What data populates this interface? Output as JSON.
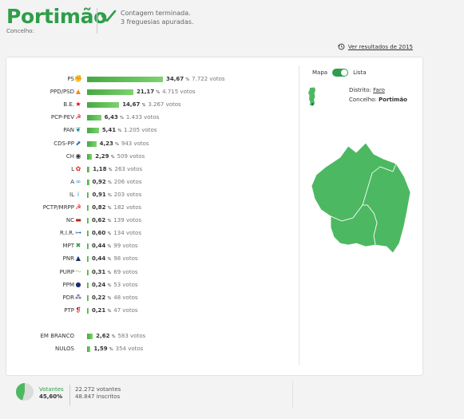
{
  "header": {
    "title": "Portimão",
    "subtitle": "Concelho:",
    "status_line1": "Contagem terminada.",
    "status_line2": "3 freguesias apuradas.",
    "prev_results_link": "Ver resultados de 2015"
  },
  "toggle": {
    "left_label": "Mapa",
    "right_label": "Lista",
    "active": "Mapa"
  },
  "location": {
    "district_label": "Distrito:",
    "district_value": "Faro",
    "council_label": "Concelho:",
    "council_value": "Portimão"
  },
  "parties": [
    {
      "abbr": "PS",
      "pct": "34,67",
      "votes": "7.722 votos",
      "value": 34.67,
      "logo_color": "#e2231a",
      "logo_glyph": "✊"
    },
    {
      "abbr": "PPD/PSD",
      "pct": "21,17",
      "votes": "4.715 votos",
      "value": 21.17,
      "logo_color": "#f68a1e",
      "logo_glyph": "▲"
    },
    {
      "abbr": "B.E.",
      "pct": "14,67",
      "votes": "3.267 votos",
      "value": 14.67,
      "logo_color": "#d7000f",
      "logo_glyph": "★"
    },
    {
      "abbr": "PCP-PEV",
      "pct": "6,43",
      "votes": "1.433 votos",
      "value": 6.43,
      "logo_color": "#d7000f",
      "logo_glyph": "☭"
    },
    {
      "abbr": "PAN",
      "pct": "5,41",
      "votes": "1.205 votos",
      "value": 5.41,
      "logo_color": "#0e8a8a",
      "logo_glyph": "❦"
    },
    {
      "abbr": "CDS-PP",
      "pct": "4,23",
      "votes": "943 votos",
      "value": 4.23,
      "logo_color": "#1f6ab4",
      "logo_glyph": "⬈"
    },
    {
      "abbr": "CH",
      "pct": "2,29",
      "votes": "509 votos",
      "value": 2.29,
      "logo_color": "#333333",
      "logo_glyph": "◉"
    },
    {
      "abbr": "L",
      "pct": "1,18",
      "votes": "263 votos",
      "value": 1.18,
      "logo_color": "#e2231a",
      "logo_glyph": "✿"
    },
    {
      "abbr": "A",
      "pct": "0,92",
      "votes": "206 votos",
      "value": 0.92,
      "logo_color": "#2a8fd6",
      "logo_glyph": "∞"
    },
    {
      "abbr": "IL",
      "pct": "0,91",
      "votes": "203 votos",
      "value": 0.91,
      "logo_color": "#1a9ae0",
      "logo_glyph": "i"
    },
    {
      "abbr": "PCTP/MRPP",
      "pct": "0,82",
      "votes": "182 votos",
      "value": 0.82,
      "logo_color": "#d7000f",
      "logo_glyph": "☭"
    },
    {
      "abbr": "NC",
      "pct": "0,62",
      "votes": "139 votos",
      "value": 0.62,
      "logo_color": "#b5251b",
      "logo_glyph": "▬"
    },
    {
      "abbr": "R.I.R.",
      "pct": "0,60",
      "votes": "134 votos",
      "value": 0.6,
      "logo_color": "#1f6ab4",
      "logo_glyph": "⊶"
    },
    {
      "abbr": "MPT",
      "pct": "0,44",
      "votes": "99 votos",
      "value": 0.44,
      "logo_color": "#2e9e4a",
      "logo_glyph": "✖"
    },
    {
      "abbr": "PNR",
      "pct": "0,44",
      "votes": "98 votos",
      "value": 0.44,
      "logo_color": "#1b2f6b",
      "logo_glyph": "▲"
    },
    {
      "abbr": "PURP",
      "pct": "0,31",
      "votes": "69 votos",
      "value": 0.31,
      "logo_color": "#8bc53f",
      "logo_glyph": "～"
    },
    {
      "abbr": "PPM",
      "pct": "0,24",
      "votes": "53 votos",
      "value": 0.24,
      "logo_color": "#1b2f6b",
      "logo_glyph": "●"
    },
    {
      "abbr": "PDR",
      "pct": "0,22",
      "votes": "48 votos",
      "value": 0.22,
      "logo_color": "#1b2f6b",
      "logo_glyph": "⁂"
    },
    {
      "abbr": "PTP",
      "pct": "0,21",
      "votes": "47 votos",
      "value": 0.21,
      "logo_color": "#d7000f",
      "logo_glyph": "❡"
    }
  ],
  "others": [
    {
      "abbr": "EM BRANCO",
      "pct": "2,62",
      "votes": "583 votos",
      "value": 2.62
    },
    {
      "abbr": "NULOS",
      "pct": "1,59",
      "votes": "354 votos",
      "value": 1.59
    }
  ],
  "pct_symbol": "%",
  "footer": {
    "voters_label": "Votantes",
    "voters_pct": "45,60%",
    "turnout_fraction": 0.456,
    "voters_count": "22.272 votantes",
    "registered_count": "48.847 inscritos"
  },
  "colors": {
    "accent": "#2e9e4a",
    "map_fill": "#4db862",
    "bar_start": "#46a843",
    "bar_end": "#7dd36d"
  }
}
